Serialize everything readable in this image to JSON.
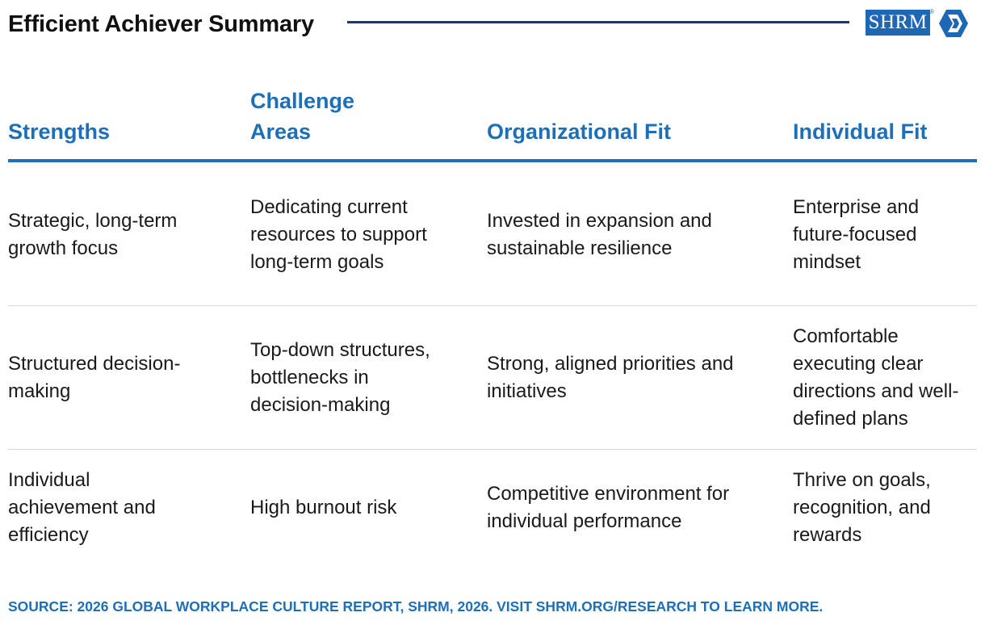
{
  "title": "Efficient Achiever Summary",
  "logo": {
    "text": "SHRM",
    "registered": "®",
    "brand_color": "#1d67b4"
  },
  "colors": {
    "accent": "#1d6fb8",
    "title_rule": "#1f3a5f",
    "row_divider": "#d6d6d6",
    "body_text": "#1a1a1a"
  },
  "table": {
    "headers": [
      "Strengths",
      "Challenge Areas",
      "Organizational Fit",
      "Individual Fit"
    ],
    "rows": [
      [
        "Strategic, long-term growth focus",
        "Dedicating current resources to support long-term goals",
        "Invested in expansion and sustainable resilience",
        "Enterprise and future-focused mindset"
      ],
      [
        "Structured decision-making",
        "Top-down structures, bottlenecks in decision-making",
        "Strong, aligned priorities and initiatives",
        "Comfortable executing clear directions and well-defined plans"
      ],
      [
        "Individual achievement and efficiency",
        "High burnout risk",
        "Competitive environment for individual performance",
        "Thrive on goals, recognition, and rewards"
      ]
    ]
  },
  "source": "SOURCE: 2026 GLOBAL WORKPLACE CULTURE REPORT, SHRM, 2026. VISIT SHRM.ORG/RESEARCH TO LEARN MORE."
}
